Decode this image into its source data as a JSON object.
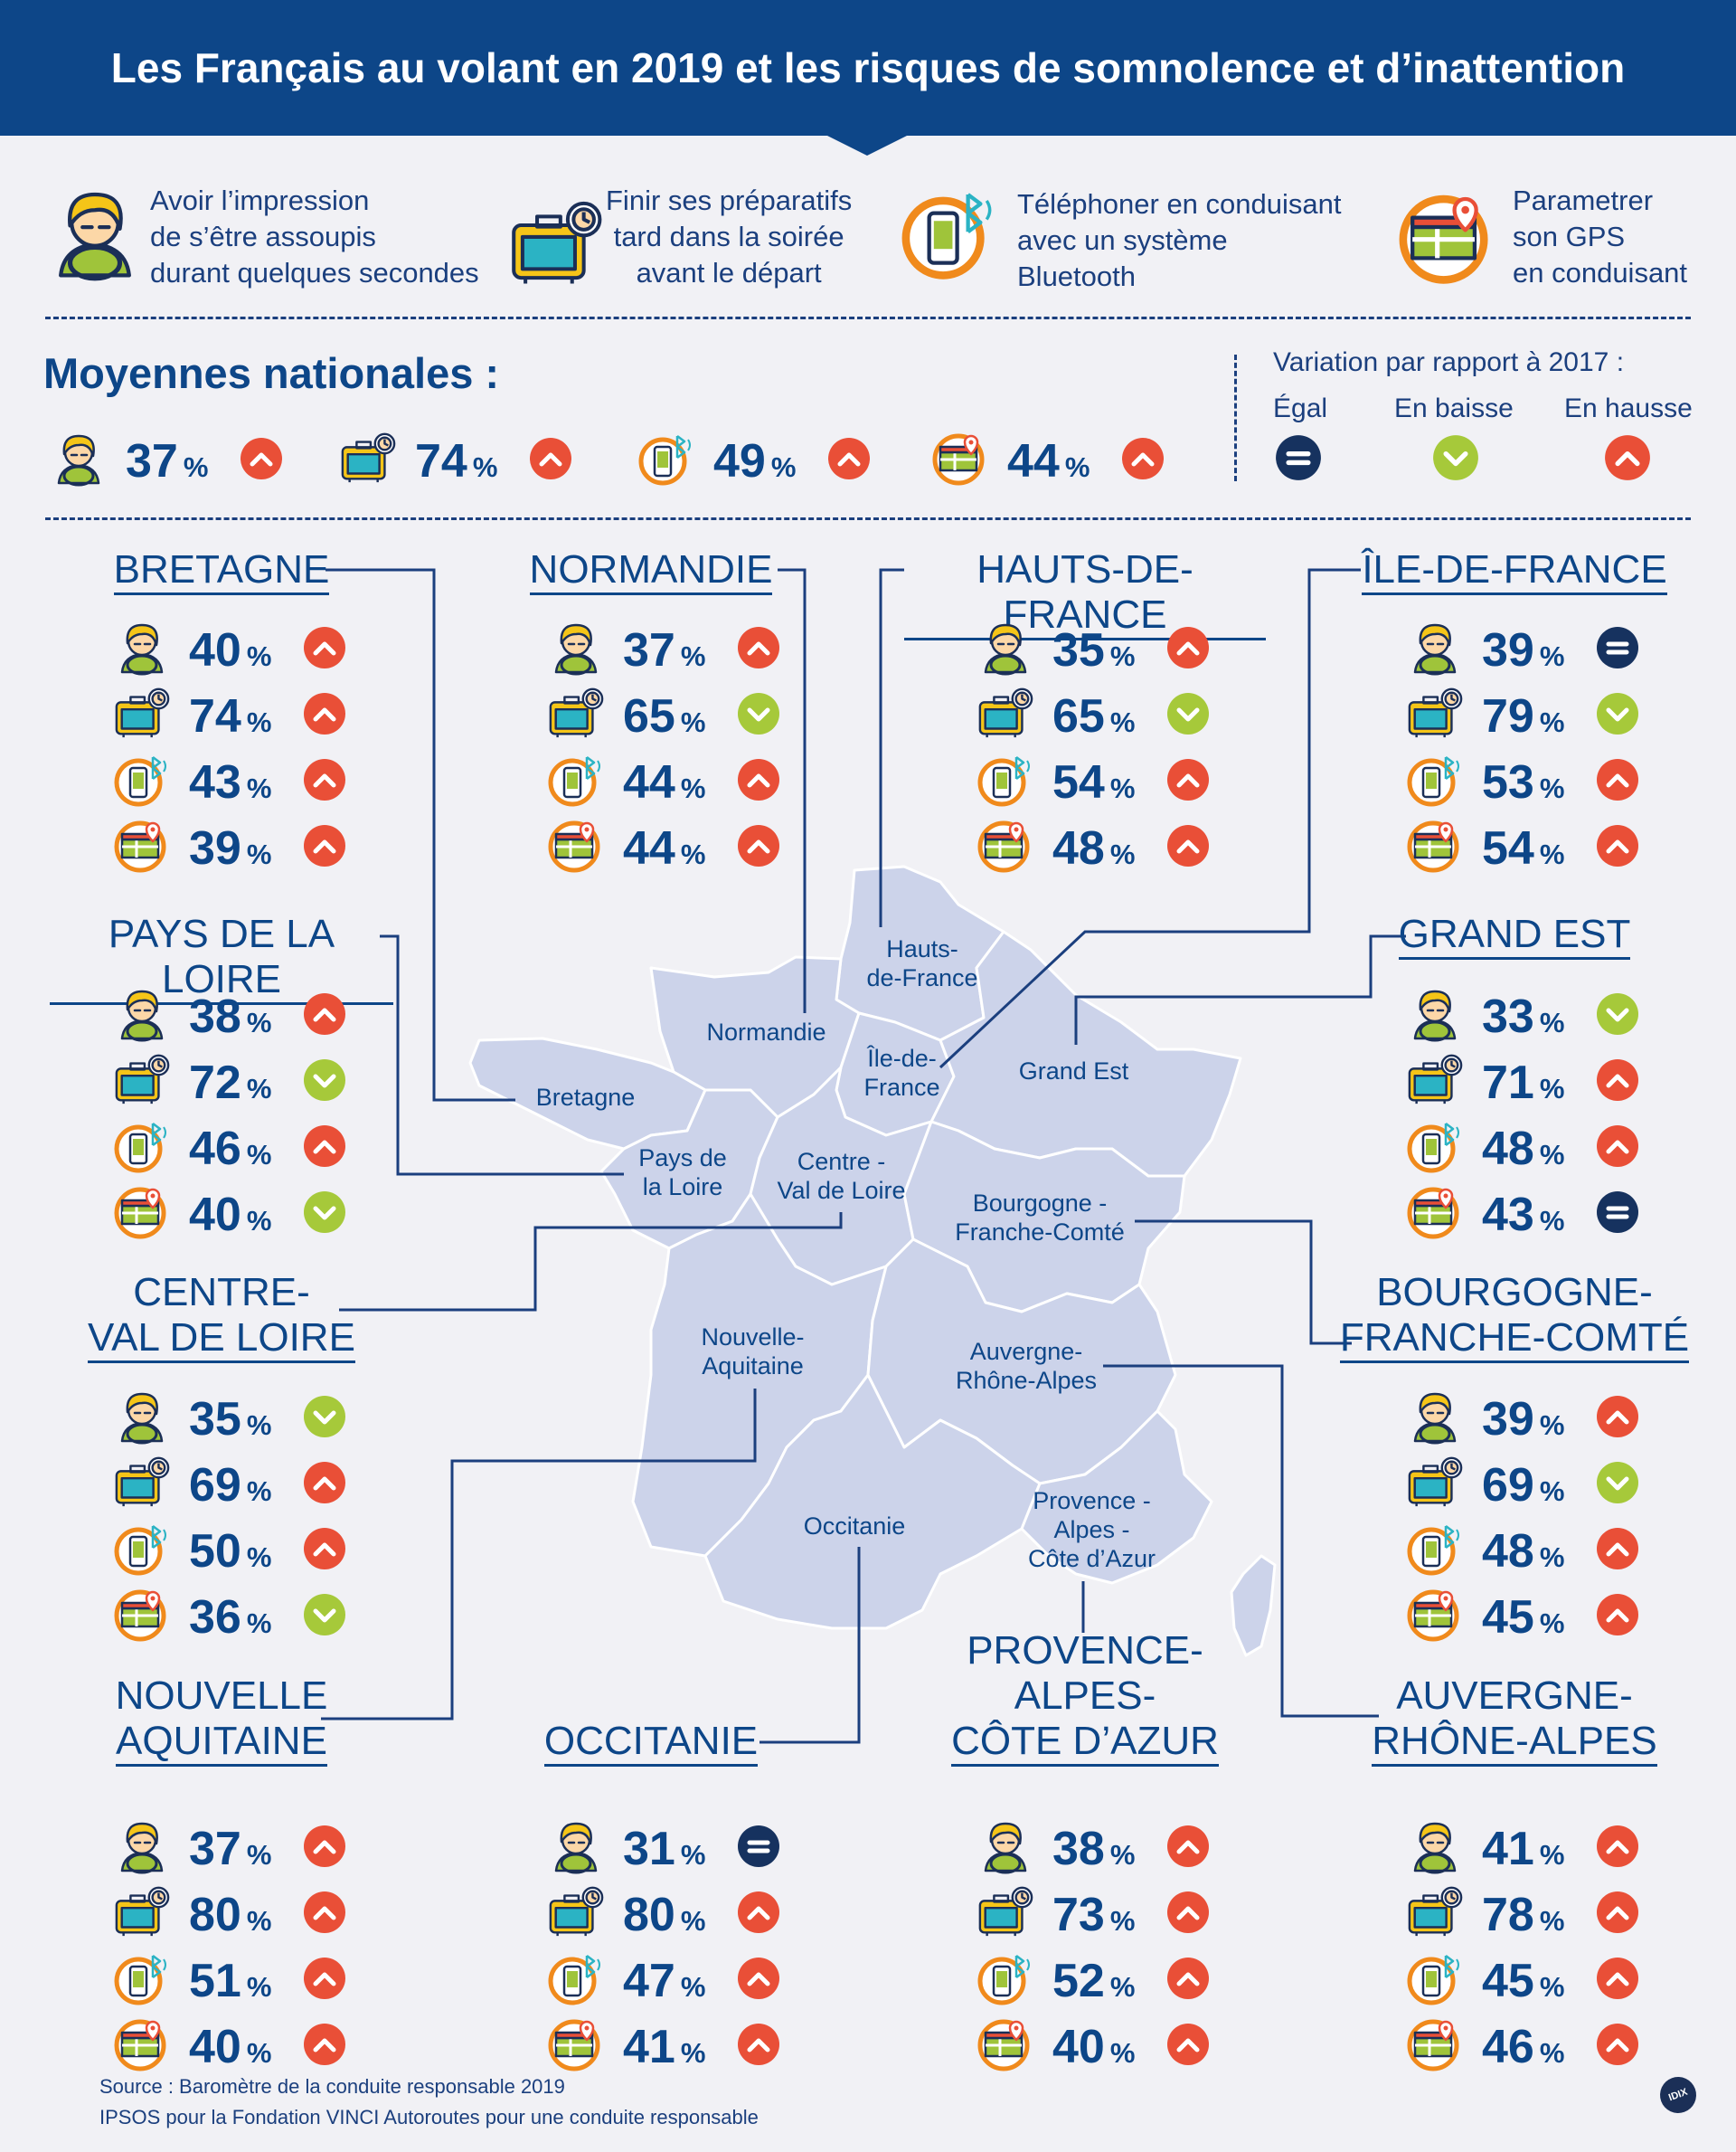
{
  "title": "Les Français au volant en 2019 et les risques de somnolence et d’inattention",
  "legend": [
    {
      "icon": "drowsy-driver-icon",
      "text": "Avoir l’impression\nde s’être assoupis\ndurant quelques secondes"
    },
    {
      "icon": "suitcase-clock-icon",
      "text": "Finir ses préparatifs\ntard dans la soirée\navant le départ"
    },
    {
      "icon": "phone-bluetooth-icon",
      "text": "Téléphoner en conduisant\navec un système\nBluetooth"
    },
    {
      "icon": "gps-map-icon",
      "text": "Parametrer\nson GPS\nen conduisant"
    }
  ],
  "national": {
    "title": "Moyennes nationales :",
    "values": [
      {
        "value": "37",
        "unit": "%",
        "trend": "up"
      },
      {
        "value": "74",
        "unit": "%",
        "trend": "up"
      },
      {
        "value": "49",
        "unit": "%",
        "trend": "up"
      },
      {
        "value": "44",
        "unit": "%",
        "trend": "up"
      }
    ]
  },
  "variation": {
    "title": "Variation par rapport à 2017 :",
    "equal": "Égal",
    "down": "En baisse",
    "up": "En hausse"
  },
  "colors": {
    "header": "#0d4688",
    "up": "#e94f37",
    "down": "#a6c93a",
    "equal": "#16325f",
    "map": "#ccd3ea",
    "icon_yellow": "#f5c518",
    "icon_orange": "#f08a1c",
    "icon_teal": "#2bb3c4"
  },
  "regions": [
    {
      "name": "BRETAGNE",
      "stats": [
        {
          "value": "40",
          "trend": "up"
        },
        {
          "value": "74",
          "trend": "up"
        },
        {
          "value": "43",
          "trend": "up"
        },
        {
          "value": "39",
          "trend": "up"
        }
      ]
    },
    {
      "name": "NORMANDIE",
      "stats": [
        {
          "value": "37",
          "trend": "up"
        },
        {
          "value": "65",
          "trend": "down"
        },
        {
          "value": "44",
          "trend": "up"
        },
        {
          "value": "44",
          "trend": "up"
        }
      ]
    },
    {
      "name": "HAUTS-DE-FRANCE",
      "stats": [
        {
          "value": "35",
          "trend": "up"
        },
        {
          "value": "65",
          "trend": "down"
        },
        {
          "value": "54",
          "trend": "up"
        },
        {
          "value": "48",
          "trend": "up"
        }
      ]
    },
    {
      "name": "ÎLE-DE-FRANCE",
      "stats": [
        {
          "value": "39",
          "trend": "equal"
        },
        {
          "value": "79",
          "trend": "down"
        },
        {
          "value": "53",
          "trend": "up"
        },
        {
          "value": "54",
          "trend": "up"
        }
      ]
    },
    {
      "name": "PAYS DE LA LOIRE",
      "stats": [
        {
          "value": "38",
          "trend": "up"
        },
        {
          "value": "72",
          "trend": "down"
        },
        {
          "value": "46",
          "trend": "up"
        },
        {
          "value": "40",
          "trend": "down"
        }
      ]
    },
    {
      "name": "GRAND EST",
      "stats": [
        {
          "value": "33",
          "trend": "down"
        },
        {
          "value": "71",
          "trend": "up"
        },
        {
          "value": "48",
          "trend": "up"
        },
        {
          "value": "43",
          "trend": "equal"
        }
      ]
    },
    {
      "name": "CENTRE-\nVAL DE LOIRE",
      "stats": [
        {
          "value": "35",
          "trend": "down"
        },
        {
          "value": "69",
          "trend": "up"
        },
        {
          "value": "50",
          "trend": "up"
        },
        {
          "value": "36",
          "trend": "down"
        }
      ]
    },
    {
      "name": "BOURGOGNE-\nFRANCHE-COMTÉ",
      "stats": [
        {
          "value": "39",
          "trend": "up"
        },
        {
          "value": "69",
          "trend": "down"
        },
        {
          "value": "48",
          "trend": "up"
        },
        {
          "value": "45",
          "trend": "up"
        }
      ]
    },
    {
      "name": "NOUVELLE\nAQUITAINE",
      "stats": [
        {
          "value": "37",
          "trend": "up"
        },
        {
          "value": "80",
          "trend": "up"
        },
        {
          "value": "51",
          "trend": "up"
        },
        {
          "value": "40",
          "trend": "up"
        }
      ]
    },
    {
      "name": "OCCITANIE",
      "stats": [
        {
          "value": "31",
          "trend": "equal"
        },
        {
          "value": "80",
          "trend": "up"
        },
        {
          "value": "47",
          "trend": "up"
        },
        {
          "value": "41",
          "trend": "up"
        }
      ]
    },
    {
      "name": "PROVENCE-\nALPES-\nCÔTE D’AZUR",
      "stats": [
        {
          "value": "38",
          "trend": "up"
        },
        {
          "value": "73",
          "trend": "up"
        },
        {
          "value": "52",
          "trend": "up"
        },
        {
          "value": "40",
          "trend": "up"
        }
      ]
    },
    {
      "name": "AUVERGNE-\nRHÔNE-ALPES",
      "stats": [
        {
          "value": "41",
          "trend": "up"
        },
        {
          "value": "78",
          "trend": "up"
        },
        {
          "value": "45",
          "trend": "up"
        },
        {
          "value": "46",
          "trend": "up"
        }
      ]
    }
  ],
  "map_labels": [
    "Hauts-\nde-France",
    "Normandie",
    "Île-de-\nFrance",
    "Grand Est",
    "Bretagne",
    "Pays de\nla Loire",
    "Centre -\nVal de Loire",
    "Bourgogne -\nFranche-Comté",
    "Nouvelle-\nAquitaine",
    "Auvergne-\nRhône-Alpes",
    "Occitanie",
    "Provence -\nAlpes -\nCôte d’Azur"
  ],
  "percent_sign": "%",
  "source": "Source : Baromètre de la conduite responsable 2019\nIPSOS pour la Fondation VINCI Autoroutes pour une conduite responsable",
  "logo": "IDIX"
}
